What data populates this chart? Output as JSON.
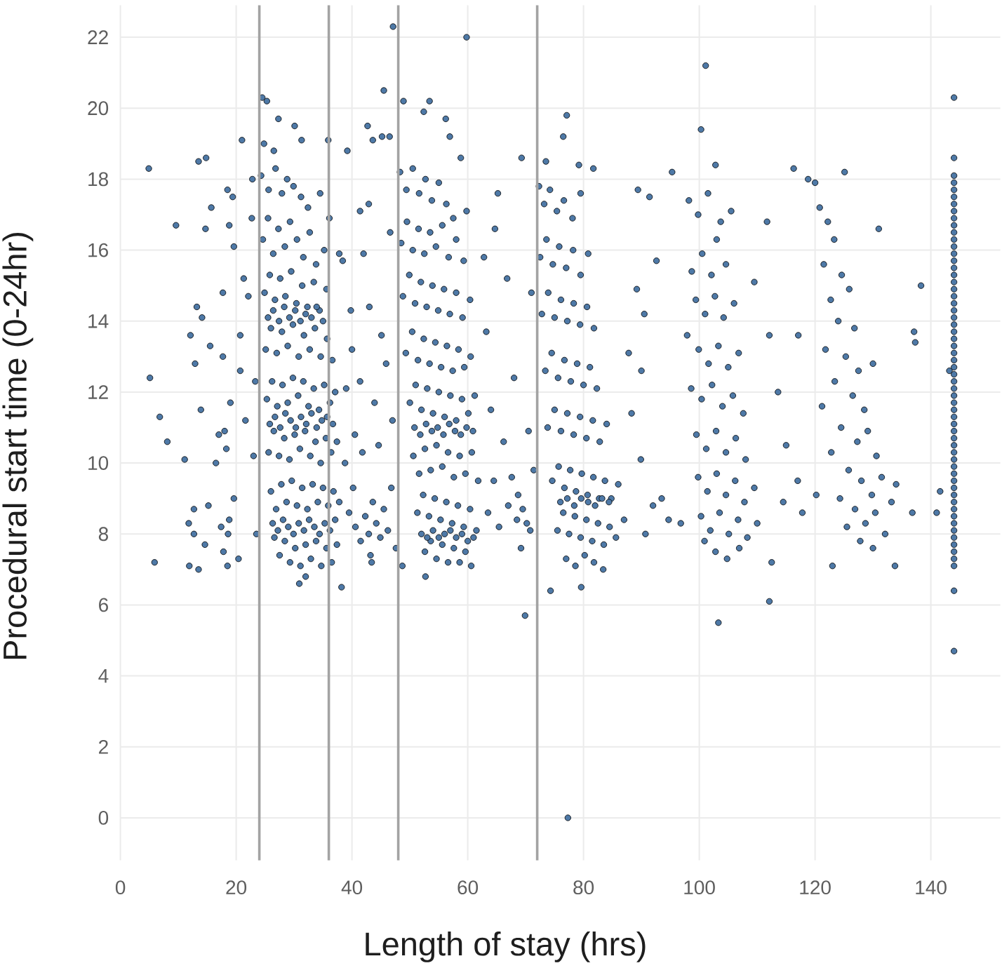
{
  "chart_data": {
    "type": "scatter",
    "xlabel": "Length of stay (hrs)",
    "ylabel": "Procedural start time (0-24hr)",
    "color": "#4e79a7",
    "marker": "circle",
    "grid": true,
    "xlim": [
      0,
      152
    ],
    "ylim": [
      -1.2,
      22.9
    ],
    "xticks": [
      0,
      20,
      40,
      60,
      80,
      100,
      120,
      140
    ],
    "yticks": [
      0,
      2,
      4,
      6,
      8,
      10,
      12,
      14,
      16,
      18,
      20,
      22
    ],
    "ref_lines": [
      {
        "axis": "x",
        "value": 24,
        "color": "#a3a3a3"
      },
      {
        "axis": "x",
        "value": 36,
        "color": "#a3a3a3"
      },
      {
        "axis": "x",
        "value": 48,
        "color": "#a3a3a3"
      },
      {
        "axis": "x",
        "value": 72,
        "color": "#a3a3a3"
      }
    ],
    "x": [
      4.9,
      5.1,
      5.9,
      6.8,
      8.1,
      9.6,
      11.1,
      11.8,
      11.9,
      12.1,
      12.7,
      13.5,
      12.9,
      13.2,
      12.7,
      13.5,
      13.9,
      14.1,
      14.6,
      14.7,
      14.8,
      15.2,
      15.5,
      15.7,
      16.5,
      17.0,
      17.8,
      17.7,
      17.7,
      18.6,
      18.8,
      18.5,
      18.3,
      18.5,
      19.6,
      18.8,
      19.0,
      19.4,
      19.6,
      20.4,
      20.7,
      20.7,
      21.0,
      21.3,
      21.6,
      22.1,
      22.7,
      22.8,
      23.3,
      23.5,
      23.0,
      18.0,
      17.4,
      24.5,
      25.3,
      27.3,
      30.1,
      31.3,
      35.9,
      24.8,
      26.5,
      24.3,
      25.6,
      26.8,
      27.9,
      28.8,
      29.9,
      31.2,
      32.4,
      34.5,
      36.1,
      24.6,
      25.5,
      26.4,
      27.3,
      28.4,
      29.3,
      30.5,
      31.6,
      32.7,
      33.8,
      35.2,
      24.9,
      25.8,
      26.7,
      27.6,
      28.5,
      29.5,
      30.4,
      31.4,
      32.3,
      33.4,
      34.4,
      35.6,
      25.1,
      26.0,
      27.0,
      27.9,
      28.9,
      29.8,
      30.8,
      31.7,
      32.7,
      33.6,
      34.6,
      35.7,
      36.6,
      25.3,
      26.2,
      27.1,
      28.0,
      28.9,
      29.8,
      30.7,
      31.6,
      32.5,
      33.4,
      34.3,
      35.2,
      36.2,
      37.1,
      25.6,
      26.5,
      27.4,
      28.3,
      29.2,
      30.1,
      31.0,
      31.9,
      32.8,
      33.7,
      34.6,
      35.5,
      36.4,
      37.4,
      26.0,
      26.9,
      27.8,
      28.7,
      29.6,
      30.5,
      31.4,
      32.3,
      33.2,
      34.1,
      35.0,
      35.9,
      36.8,
      37.8,
      26.6,
      27.5,
      28.4,
      29.3,
      30.2,
      31.1,
      32.0,
      32.9,
      33.8,
      34.7,
      35.6,
      36.5,
      37.4,
      30.9,
      32.0,
      38.2,
      25.5,
      26.4,
      27.4,
      28.3,
      29.2,
      30.2,
      31.1,
      32.0,
      33.0,
      33.9,
      35.0,
      25.8,
      26.7,
      27.6,
      28.5,
      29.4,
      30.3,
      31.2,
      32.1,
      33.0,
      33.9,
      34.8,
      35.7,
      36.7,
      26.3,
      27.2,
      28.1,
      29.0,
      29.9,
      30.8,
      31.7,
      32.6,
      33.5,
      34.4,
      35.3,
      36.2,
      37.1,
      39.2,
      42.7,
      43.6,
      45.5,
      47.1,
      45.2,
      46.5,
      41.4,
      42.0,
      42.9,
      37.8,
      38.4,
      39.8,
      40.0,
      39.0,
      41.4,
      43.0,
      45.1,
      43.9,
      46.6,
      45.9,
      40.5,
      41.8,
      38.8,
      44.6,
      47.0,
      39.5,
      40.6,
      41.5,
      42.3,
      42.9,
      43.6,
      44.2,
      44.9,
      45.5,
      46.2,
      46.8,
      43.2,
      47.6,
      40.2,
      43.4,
      48.7,
      52.7,
      48.9,
      53.4,
      52.4,
      56.2,
      56.9,
      59.8,
      58.8,
      59.8,
      64.7,
      48.3,
      49.4,
      50.5,
      51.6,
      52.7,
      53.8,
      55.0,
      56.3,
      57.5,
      48.5,
      49.5,
      50.5,
      51.5,
      52.5,
      53.5,
      54.5,
      55.6,
      56.7,
      58.0,
      59.3,
      48.8,
      49.9,
      50.9,
      51.9,
      52.9,
      53.9,
      54.9,
      55.9,
      56.9,
      58.0,
      59.1,
      60.4,
      49.3,
      50.4,
      51.4,
      52.4,
      53.4,
      54.4,
      55.4,
      56.4,
      57.4,
      58.4,
      59.4,
      60.5,
      50.0,
      51.0,
      52.0,
      53.0,
      54.0,
      55.0,
      56.0,
      57.0,
      58.0,
      59.0,
      60.1,
      61.2,
      50.6,
      51.6,
      52.6,
      53.6,
      54.6,
      55.6,
      56.6,
      57.6,
      58.6,
      59.6,
      60.7,
      61.8,
      51.3,
      52.3,
      53.3,
      54.3,
      55.3,
      56.3,
      57.3,
      58.3,
      59.3,
      60.4,
      61.5,
      52.6,
      53.6,
      54.6,
      55.6,
      56.6,
      57.6,
      58.6,
      59.6,
      60.6,
      50.8,
      51.8,
      52.8,
      53.8,
      54.8,
      55.8,
      56.8,
      57.8,
      58.8,
      59.8,
      60.9,
      52.0,
      53.0,
      54.0,
      55.0,
      56.0,
      57.0,
      58.0,
      59.0,
      60.0,
      61.0,
      63.5,
      64.5,
      65.4,
      66.2,
      67.0,
      68.0,
      68.7,
      69.3,
      69.9,
      70.2,
      71.0,
      63.2,
      64.0,
      66.8,
      62.8,
      70.5,
      71.4,
      65.2,
      68.5,
      69.5,
      70.8,
      67.6,
      69.2,
      73.5,
      76.5,
      77.1,
      79.2,
      81.7,
      74.3,
      79.6,
      77.3,
      72.3,
      73.2,
      74.2,
      75.4,
      76.6,
      78.1,
      79.5,
      72.5,
      73.6,
      74.7,
      75.8,
      77.0,
      78.2,
      79.5,
      80.8,
      72.8,
      73.9,
      75.0,
      76.1,
      77.2,
      78.3,
      79.4,
      80.6,
      81.8,
      73.4,
      74.5,
      75.6,
      76.7,
      77.8,
      78.9,
      80.0,
      81.1,
      82.3,
      73.8,
      75.0,
      76.1,
      77.2,
      78.3,
      79.4,
      80.5,
      81.6,
      82.8,
      84.0,
      74.6,
      75.7,
      76.7,
      77.7,
      78.7,
      79.7,
      80.7,
      81.7,
      82.7,
      83.7,
      84.8,
      86.0,
      75.5,
      76.5,
      77.5,
      78.5,
      79.5,
      80.5,
      81.5,
      82.5,
      83.5,
      84.5,
      85.6,
      87.0,
      77.0,
      78.6,
      80.2,
      81.8,
      83.4,
      76.0,
      77.2,
      78.4,
      79.6,
      80.8,
      82.0,
      83.2,
      84.4,
      89.4,
      91.4,
      92.6,
      89.2,
      90.5,
      90.0,
      89.9,
      90.7,
      96.8,
      88.3,
      93.5,
      94.7,
      92.0,
      95.3,
      87.8,
      101.1,
      100.3,
      102.8,
      105.5,
      103.7,
      109.5,
      103.3,
      112.1,
      111.7,
      112.1,
      112.5,
      98.2,
      99.8,
      101.5,
      103.0,
      100.5,
      98.7,
      102.1,
      104.6,
      99.4,
      101.0,
      102.7,
      104.2,
      106.0,
      97.9,
      99.9,
      101.6,
      103.3,
      105.0,
      106.8,
      98.6,
      100.4,
      102.2,
      104.0,
      105.8,
      107.6,
      99.5,
      101.2,
      102.9,
      104.6,
      106.3,
      108.0,
      99.8,
      101.4,
      103.0,
      104.6,
      106.2,
      107.8,
      109.5,
      100.3,
      101.9,
      103.5,
      105.1,
      106.7,
      108.3,
      110.0,
      102.8,
      104.8,
      106.9,
      100.9,
      115.0,
      117.0,
      117.8,
      116.3,
      117.1,
      113.6,
      114.5,
      125.1,
      118.8,
      120.0,
      131.0,
      138.3,
      137.1,
      137.3,
      120.2,
      141.6,
      136.8,
      141.0,
      123.0,
      133.8,
      134.0,
      120.8,
      122.2,
      123.3,
      121.5,
      124.6,
      122.7,
      125.9,
      124.0,
      126.8,
      121.8,
      125.3,
      127.5,
      123.4,
      126.5,
      128.5,
      130.0,
      124.5,
      127.3,
      129.1,
      130.6,
      122.8,
      125.8,
      128.0,
      129.8,
      131.5,
      124.3,
      126.9,
      128.7,
      130.4,
      132.1,
      125.5,
      127.8,
      130.0,
      133.2,
      121.2,
      144,
      144,
      144,
      144,
      143.2,
      144,
      144,
      144,
      144,
      144,
      144,
      144,
      144,
      144,
      144,
      144,
      144,
      144,
      144,
      144,
      144,
      144,
      144,
      144,
      144,
      144,
      144,
      144,
      144,
      144,
      144,
      144,
      144,
      144,
      144,
      144,
      144,
      144,
      144,
      144,
      144,
      144,
      144,
      144,
      144,
      144,
      144,
      144,
      144,
      144,
      144,
      144,
      144,
      144,
      144,
      144,
      144,
      144,
      144,
      144,
      144
    ],
    "values": [
      18.3,
      12.4,
      7.2,
      11.3,
      10.6,
      16.7,
      10.1,
      8.3,
      7.1,
      13.6,
      8.7,
      7.0,
      12.8,
      14.4,
      8.0,
      18.5,
      11.5,
      14.1,
      7.7,
      16.6,
      18.6,
      8.8,
      13.3,
      17.2,
      10.0,
      10.8,
      7.5,
      14.8,
      13.0,
      8.0,
      8.4,
      7.1,
      10.4,
      17.7,
      9.0,
      16.7,
      11.7,
      17.5,
      16.1,
      7.3,
      13.6,
      12.6,
      19.1,
      15.2,
      11.2,
      14.7,
      16.9,
      18.0,
      12.3,
      8.0,
      10.2,
      10.9,
      8.2,
      20.3,
      20.2,
      19.7,
      19.5,
      19.1,
      19.1,
      19.0,
      18.8,
      18.1,
      17.7,
      18.3,
      17.6,
      18.0,
      17.8,
      17.5,
      17.2,
      17.6,
      16.9,
      16.3,
      16.9,
      15.9,
      16.6,
      16.1,
      16.8,
      16.3,
      15.8,
      16.5,
      15.6,
      16.0,
      14.8,
      15.3,
      14.6,
      15.2,
      14.7,
      15.4,
      14.5,
      15.0,
      14.4,
      15.1,
      14.3,
      14.9,
      13.2,
      13.8,
      13.1,
      13.7,
      13.3,
      13.9,
      13.0,
      13.6,
      13.2,
      13.8,
      13.0,
      13.5,
      12.9,
      11.8,
      12.3,
      11.6,
      12.2,
      11.7,
      12.4,
      11.9,
      12.3,
      11.6,
      12.1,
      11.5,
      12.2,
      11.7,
      12.0,
      10.3,
      10.9,
      10.2,
      10.7,
      10.1,
      10.8,
      10.4,
      10.9,
      10.2,
      10.6,
      10.0,
      10.7,
      10.3,
      10.6,
      9.2,
      8.7,
      9.4,
      8.9,
      9.5,
      8.8,
      9.3,
      8.7,
      9.4,
      8.9,
      9.3,
      8.8,
      9.2,
      8.9,
      7.9,
      7.4,
      7.8,
      7.2,
      7.6,
      7.1,
      7.7,
      7.3,
      7.8,
      7.1,
      7.6,
      7.2,
      7.7,
      6.6,
      6.8,
      6.5,
      14.1,
      14.3,
      14.0,
      14.4,
      14.1,
      14.3,
      14.0,
      14.2,
      14.1,
      14.4,
      14.0,
      11.1,
      11.3,
      11.0,
      11.4,
      11.2,
      11.0,
      11.3,
      11.1,
      11.4,
      11.0,
      11.2,
      11.3,
      11.1,
      8.3,
      8.1,
      8.4,
      8.2,
      8.0,
      8.3,
      8.1,
      8.4,
      8.2,
      8.0,
      8.3,
      8.1,
      8.4,
      18.8,
      19.5,
      19.1,
      20.5,
      22.3,
      19.2,
      19.2,
      17.1,
      15.9,
      17.3,
      15.9,
      15.7,
      14.3,
      13.2,
      12.1,
      12.3,
      14.4,
      13.6,
      11.7,
      16.5,
      12.8,
      10.8,
      10.3,
      10.0,
      10.5,
      11.2,
      8.6,
      8.2,
      7.8,
      8.5,
      8.0,
      8.9,
      8.3,
      7.9,
      8.7,
      8.1,
      9.3,
      7.4,
      7.6,
      9.3,
      7.2,
      7.1,
      6.8,
      20.2,
      20.2,
      19.9,
      19.7,
      19.2,
      22.0,
      18.6,
      17.1,
      16.6,
      18.2,
      17.7,
      18.3,
      17.6,
      18.0,
      17.4,
      17.9,
      17.3,
      16.9,
      16.2,
      16.8,
      16.0,
      16.6,
      15.9,
      16.5,
      16.1,
      16.7,
      15.8,
      16.3,
      15.7,
      14.7,
      15.3,
      14.5,
      15.1,
      14.4,
      15.0,
      14.3,
      14.9,
      14.2,
      14.8,
      14.1,
      14.6,
      13.1,
      13.7,
      12.9,
      13.5,
      12.8,
      13.4,
      12.7,
      13.3,
      12.6,
      13.2,
      12.7,
      13.0,
      11.7,
      12.2,
      11.5,
      12.1,
      11.4,
      12.0,
      11.3,
      11.9,
      11.2,
      11.8,
      11.4,
      11.9,
      10.2,
      9.7,
      10.4,
      9.8,
      10.5,
      9.9,
      10.3,
      9.6,
      10.2,
      9.7,
      10.3,
      9.5,
      8.6,
      9.1,
      8.5,
      9.0,
      8.4,
      8.9,
      8.3,
      8.8,
      8.2,
      8.7,
      8.1,
      7.5,
      7.8,
      7.3,
      7.7,
      7.2,
      7.6,
      7.2,
      7.5,
      7.1,
      11.0,
      10.8,
      11.1,
      10.9,
      11.0,
      10.8,
      11.1,
      10.9,
      10.8,
      11.0,
      10.9,
      8.0,
      7.9,
      8.1,
      7.9,
      8.0,
      8.1,
      7.9,
      8.0,
      7.8,
      7.9,
      8.6,
      9.5,
      8.2,
      10.6,
      8.8,
      12.4,
      9.1,
      18.6,
      5.7,
      8.3,
      14.8,
      13.7,
      11.5,
      15.2,
      15.8,
      10.9,
      9.8,
      17.6,
      8.4,
      8.7,
      8.1,
      9.6,
      7.6,
      18.5,
      19.2,
      19.8,
      18.4,
      18.3,
      6.4,
      6.5,
      0.0,
      17.8,
      17.3,
      17.7,
      17.1,
      17.4,
      16.9,
      17.6,
      15.8,
      16.3,
      15.6,
      16.1,
      15.5,
      16.0,
      15.3,
      15.9,
      14.2,
      14.8,
      14.1,
      14.6,
      14.0,
      14.5,
      13.9,
      14.4,
      13.8,
      12.6,
      13.1,
      12.4,
      12.9,
      12.3,
      12.8,
      12.2,
      12.7,
      12.1,
      11.0,
      11.5,
      10.9,
      11.4,
      10.8,
      11.3,
      10.7,
      11.2,
      10.6,
      11.1,
      9.5,
      9.9,
      9.3,
      9.8,
      9.2,
      9.7,
      9.1,
      9.6,
      9.0,
      9.5,
      9.0,
      9.4,
      8.1,
      8.6,
      8.0,
      8.5,
      7.9,
      8.4,
      7.8,
      8.3,
      7.7,
      8.2,
      7.9,
      8.4,
      7.3,
      7.1,
      7.4,
      7.2,
      7.0,
      8.9,
      9.0,
      8.8,
      9.0,
      8.9,
      8.8,
      9.0,
      8.9,
      17.7,
      17.5,
      15.7,
      14.9,
      14.2,
      12.6,
      10.1,
      8.0,
      8.3,
      11.4,
      9.0,
      8.4,
      8.8,
      18.2,
      13.1,
      21.2,
      19.4,
      18.4,
      17.1,
      16.8,
      15.1,
      5.5,
      6.1,
      16.8,
      13.6,
      7.2,
      17.4,
      17.0,
      17.6,
      16.3,
      15.9,
      15.4,
      15.3,
      15.6,
      14.6,
      14.2,
      14.7,
      14.1,
      14.5,
      13.6,
      13.2,
      12.8,
      13.3,
      12.7,
      13.1,
      12.1,
      11.8,
      12.2,
      11.6,
      11.9,
      11.4,
      10.8,
      10.4,
      10.9,
      10.3,
      10.7,
      10.1,
      9.6,
      9.2,
      9.7,
      9.1,
      9.5,
      8.9,
      9.3,
      8.5,
      8.1,
      8.6,
      8.0,
      8.4,
      7.9,
      8.3,
      7.5,
      7.3,
      7.6,
      7.8,
      10.5,
      9.5,
      8.6,
      18.3,
      13.6,
      12.0,
      8.9,
      18.2,
      18.0,
      17.9,
      16.6,
      15.0,
      13.7,
      13.4,
      9.1,
      9.2,
      8.6,
      8.6,
      7.1,
      7.1,
      9.4,
      17.2,
      16.8,
      16.3,
      15.6,
      15.3,
      14.6,
      14.9,
      14.0,
      13.8,
      13.2,
      13.0,
      12.6,
      12.3,
      11.9,
      11.5,
      12.8,
      11.0,
      10.6,
      10.9,
      10.2,
      10.3,
      9.8,
      9.5,
      9.1,
      9.6,
      9.0,
      8.7,
      8.3,
      8.6,
      8.0,
      8.2,
      7.8,
      7.6,
      8.9,
      11.6,
      4.7,
      6.4,
      18.6,
      20.3,
      12.6,
      7.1,
      7.3,
      7.5,
      7.7,
      7.9,
      8.1,
      8.3,
      8.5,
      8.7,
      8.9,
      9.1,
      9.3,
      9.5,
      9.7,
      9.9,
      10.1,
      10.3,
      10.5,
      10.7,
      10.9,
      11.1,
      11.3,
      11.5,
      11.7,
      11.9,
      12.1,
      12.3,
      12.5,
      12.7,
      12.9,
      13.1,
      13.3,
      13.5,
      13.7,
      13.9,
      14.1,
      14.3,
      14.5,
      14.7,
      14.9,
      15.1,
      15.3,
      15.5,
      15.7,
      15.9,
      16.1,
      16.3,
      16.5,
      16.7,
      16.9,
      17.1,
      17.3,
      17.5,
      17.7,
      17.9,
      18.1
    ]
  }
}
